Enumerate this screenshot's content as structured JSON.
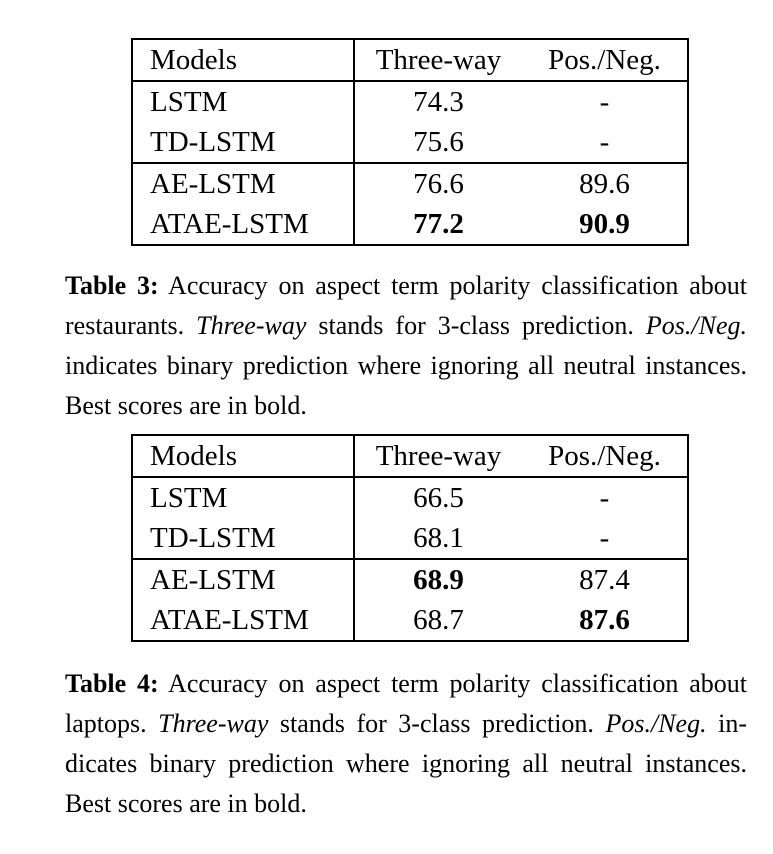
{
  "page": {
    "background_color": "#ffffff",
    "text_color": "#000000",
    "border_color": "#000000"
  },
  "tables": [
    {
      "name": "Table 3",
      "topic": "restaurants",
      "columns": [
        "Models",
        "Three-way",
        "Pos./Neg."
      ],
      "groups": [
        {
          "rows": [
            {
              "model": "LSTM",
              "three_way": "74.3",
              "pos_neg": "-",
              "bold_cells": []
            },
            {
              "model": "TD-LSTM",
              "three_way": "75.6",
              "pos_neg": "-",
              "bold_cells": []
            }
          ]
        },
        {
          "rows": [
            {
              "model": "AE-LSTM",
              "three_way": "76.6",
              "pos_neg": "89.6",
              "bold_cells": []
            },
            {
              "model": "ATAE-LSTM",
              "three_way": "77.2",
              "pos_neg": "90.9",
              "bold_cells": [
                "three_way",
                "pos_neg"
              ]
            }
          ]
        }
      ]
    },
    {
      "name": "Table 4",
      "topic": "laptops",
      "columns": [
        "Models",
        "Three-way",
        "Pos./Neg."
      ],
      "groups": [
        {
          "rows": [
            {
              "model": "LSTM",
              "three_way": "66.5",
              "pos_neg": "-",
              "bold_cells": []
            },
            {
              "model": "TD-LSTM",
              "three_way": "68.1",
              "pos_neg": "-",
              "bold_cells": []
            }
          ]
        },
        {
          "rows": [
            {
              "model": "AE-LSTM",
              "three_way": "68.9",
              "pos_neg": "87.4",
              "bold_cells": [
                "three_way"
              ]
            },
            {
              "model": "ATAE-LSTM",
              "three_way": "68.7",
              "pos_neg": "87.6",
              "bold_cells": [
                "pos_neg"
              ]
            }
          ]
        }
      ]
    }
  ],
  "captions": [
    {
      "label": "Table 3:",
      "full_text": "Table 3: Accuracy on aspect term polarity classification about restaurants. Three-way stands for 3-class prediction. Pos./Neg. indicates binary prediction where ignoring all neutral instances. Best scores are in bold.",
      "lines": [
        {
          "segments": [
            {
              "text": "Table 3:",
              "style": "bold"
            },
            {
              "text": " Accuracy on aspect term polarity classification about",
              "style": "normal"
            }
          ]
        },
        {
          "segments": [
            {
              "text": "restaurants. ",
              "style": "normal"
            },
            {
              "text": "Three-way",
              "style": "italic"
            },
            {
              "text": " stands for 3-class prediction. ",
              "style": "normal"
            },
            {
              "text": "Pos./Neg.",
              "style": "italic"
            }
          ]
        },
        {
          "segments": [
            {
              "text": "indicates binary prediction where ignoring all neutral instances.",
              "style": "normal"
            }
          ]
        },
        {
          "segments": [
            {
              "text": "Best scores are in bold.",
              "style": "normal"
            }
          ]
        }
      ]
    },
    {
      "label": "Table 4:",
      "full_text": "Table 4: Accuracy on aspect term polarity classification about laptops. Three-way stands for 3-class prediction. Pos./Neg. indicates binary prediction where ignoring all neutral instances. Best scores are in bold.",
      "lines": [
        {
          "segments": [
            {
              "text": "Table 4:",
              "style": "bold"
            },
            {
              "text": " Accuracy on aspect term polarity classification about",
              "style": "normal"
            }
          ]
        },
        {
          "segments": [
            {
              "text": "laptops. ",
              "style": "normal"
            },
            {
              "text": "Three-way",
              "style": "italic"
            },
            {
              "text": " stands for 3-class prediction. ",
              "style": "normal"
            },
            {
              "text": "Pos./Neg.",
              "style": "italic"
            },
            {
              "text": " in-",
              "style": "normal"
            }
          ]
        },
        {
          "segments": [
            {
              "text": "dicates binary prediction where ignoring all neutral instances.",
              "style": "normal"
            }
          ]
        },
        {
          "segments": [
            {
              "text": "Best scores are in bold.",
              "style": "normal"
            }
          ]
        }
      ]
    }
  ]
}
